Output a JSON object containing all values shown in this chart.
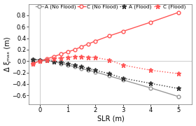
{
  "title": "",
  "xlabel": "SLR (m)",
  "ylabel": "Δ ξₘₐₓ (m)",
  "xlim": [
    -0.4,
    5.5
  ],
  "ylim": [
    -0.75,
    1.0
  ],
  "xticks": [
    0,
    1,
    2,
    3,
    4,
    5
  ],
  "yticks": [
    -0.6,
    -0.4,
    -0.2,
    0.0,
    0.2,
    0.4,
    0.6,
    0.8
  ],
  "series": [
    {
      "label": "A (No Flood)",
      "x": [
        -0.25,
        0.0,
        0.25,
        0.5,
        0.75,
        1.0,
        1.25,
        1.5,
        1.75,
        2.0,
        2.5,
        3.0,
        4.0,
        5.0
      ],
      "y": [
        0.025,
        0.02,
        0.01,
        -0.01,
        -0.04,
        -0.07,
        -0.1,
        -0.13,
        -0.16,
        -0.19,
        -0.26,
        -0.33,
        -0.47,
        -0.62
      ],
      "color": "#999999",
      "linestyle": "-",
      "marker": "o",
      "markerfacecolor": "white",
      "markeredgecolor": "#999999",
      "linewidth": 1.0,
      "markersize": 3.5,
      "zorder": 3
    },
    {
      "label": "C (No Flood)",
      "x": [
        -0.25,
        0.0,
        0.25,
        0.5,
        0.75,
        1.0,
        1.25,
        1.5,
        1.75,
        2.0,
        2.5,
        3.0,
        4.0,
        5.0
      ],
      "y": [
        -0.04,
        0.0,
        0.04,
        0.08,
        0.12,
        0.16,
        0.2,
        0.25,
        0.3,
        0.35,
        0.44,
        0.52,
        0.68,
        0.85
      ],
      "color": "#ff5555",
      "linestyle": "-",
      "marker": "o",
      "markerfacecolor": "white",
      "markeredgecolor": "#ff5555",
      "linewidth": 1.0,
      "markersize": 3.5,
      "zorder": 3
    },
    {
      "label": "A (Flood)",
      "x": [
        -0.25,
        0.0,
        0.25,
        0.5,
        0.75,
        1.0,
        1.25,
        1.5,
        1.75,
        2.0,
        2.5,
        3.0,
        4.0,
        5.0
      ],
      "y": [
        0.025,
        0.02,
        0.01,
        -0.005,
        -0.02,
        -0.04,
        -0.07,
        -0.1,
        -0.13,
        -0.16,
        -0.22,
        -0.3,
        -0.39,
        -0.48
      ],
      "color": "#333333",
      "linestyle": ":",
      "marker": "*",
      "markerfacecolor": "#333333",
      "markeredgecolor": "#333333",
      "linewidth": 1.0,
      "markersize": 4.5,
      "zorder": 3
    },
    {
      "label": "C (Flood)",
      "x": [
        -0.25,
        0.0,
        0.25,
        0.5,
        0.75,
        1.0,
        1.25,
        1.5,
        1.75,
        2.0,
        2.5,
        3.0,
        4.0,
        5.0
      ],
      "y": [
        -0.04,
        0.0,
        0.02,
        0.04,
        0.055,
        0.07,
        0.075,
        0.075,
        0.07,
        0.06,
        0.02,
        -0.07,
        -0.16,
        -0.22
      ],
      "color": "#ff5555",
      "linestyle": ":",
      "marker": "*",
      "markerfacecolor": "#ff5555",
      "markeredgecolor": "#ff5555",
      "linewidth": 1.0,
      "markersize": 4.5,
      "zorder": 3
    }
  ],
  "vline_x": 0.0,
  "vline_color": "#cccccc",
  "hline_y": 0.0,
  "hline_color": "#cccccc",
  "legend_fontsize": 5.2,
  "axis_fontsize": 7,
  "tick_fontsize": 6,
  "background_color": "#ffffff"
}
